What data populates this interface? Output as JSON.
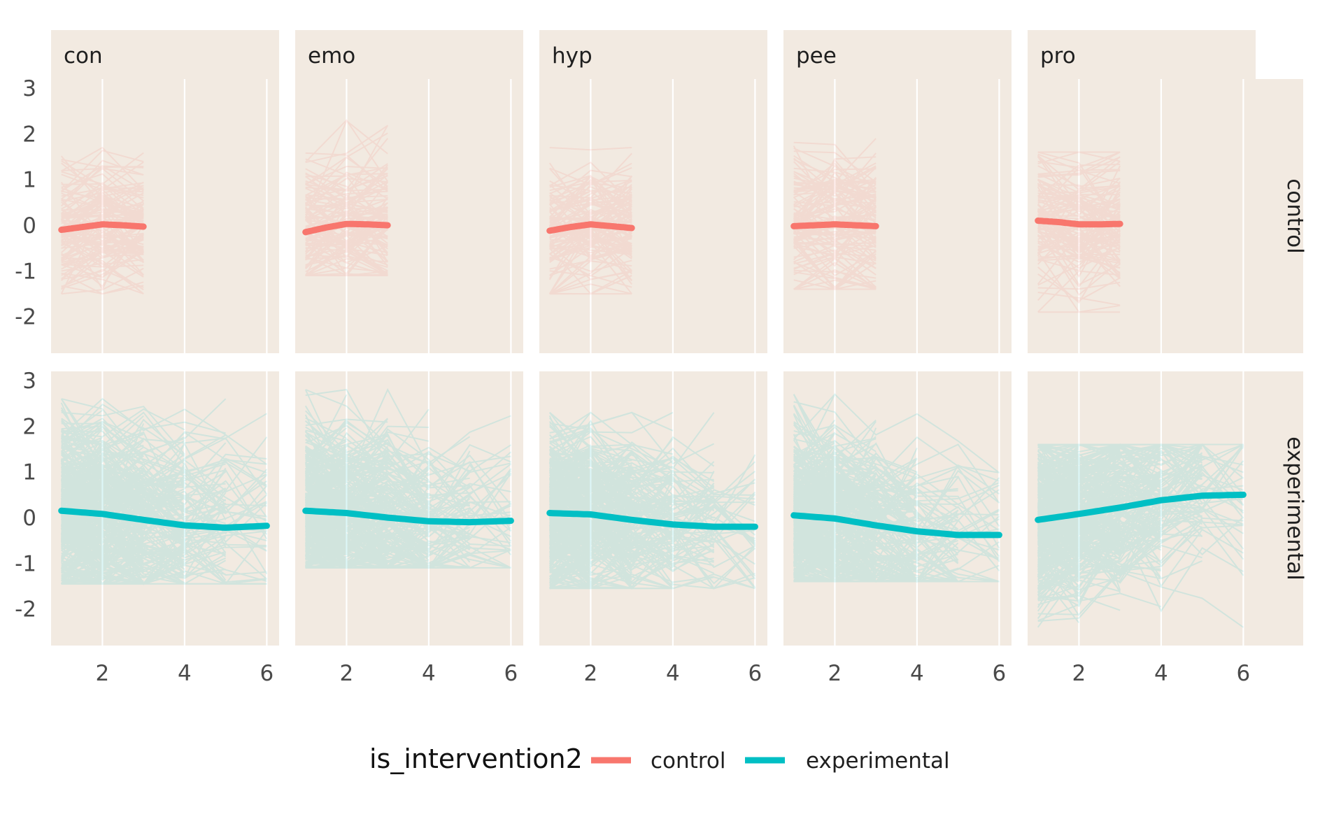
{
  "chart_data": {
    "type": "line",
    "facet_columns": [
      "con",
      "emo",
      "hyp",
      "pee",
      "pro"
    ],
    "facet_rows": [
      "control",
      "experimental"
    ],
    "x_ticks": [
      "2",
      "4",
      "6"
    ],
    "y_ticks": [
      "3",
      "2",
      "1",
      "0",
      "-1",
      "-2"
    ],
    "xlim": [
      0.75,
      6.3
    ],
    "ylim": [
      -2.8,
      3.2
    ],
    "xlabel": "",
    "ylabel": "",
    "legend": {
      "title": "is_intervention2",
      "position": "bottom",
      "entries": [
        {
          "label": "control",
          "color": "#F8766D"
        },
        {
          "label": "experimental",
          "color": "#00BFC4"
        }
      ]
    },
    "colors": {
      "control": "#F8766D",
      "experimental": "#00BFC4",
      "panel_background": "#F2EAE1",
      "grid": "#FFFFFF"
    },
    "panels": [
      {
        "col": "con",
        "row": "control",
        "trend_x": [
          1,
          1.5,
          2,
          2.5,
          3
        ],
        "trend_y": [
          -0.1,
          -0.04,
          0.02,
          0.0,
          -0.03
        ],
        "spaghetti": {
          "x_range": [
            1,
            3
          ],
          "y_range": [
            -1.5,
            1.7
          ],
          "individuals": 110
        }
      },
      {
        "col": "emo",
        "row": "control",
        "trend_x": [
          1,
          1.5,
          2,
          2.5,
          3
        ],
        "trend_y": [
          -0.15,
          -0.05,
          0.03,
          0.02,
          0.0
        ],
        "spaghetti": {
          "x_range": [
            1,
            3
          ],
          "y_range": [
            -1.1,
            2.3
          ],
          "individuals": 110
        }
      },
      {
        "col": "hyp",
        "row": "control",
        "trend_x": [
          1,
          1.5,
          2,
          2.5,
          3
        ],
        "trend_y": [
          -0.12,
          -0.04,
          0.02,
          -0.02,
          -0.06
        ],
        "spaghetti": {
          "x_range": [
            1,
            3
          ],
          "y_range": [
            -1.5,
            1.7
          ],
          "individuals": 110
        }
      },
      {
        "col": "pee",
        "row": "control",
        "trend_x": [
          1,
          1.5,
          2,
          2.5,
          3
        ],
        "trend_y": [
          -0.02,
          0.0,
          0.02,
          0.0,
          -0.02
        ],
        "spaghetti": {
          "x_range": [
            1,
            3
          ],
          "y_range": [
            -1.4,
            1.9
          ],
          "individuals": 110
        }
      },
      {
        "col": "pro",
        "row": "control",
        "trend_x": [
          1,
          1.5,
          2,
          2.5,
          3
        ],
        "trend_y": [
          0.1,
          0.07,
          0.02,
          0.02,
          0.03
        ],
        "spaghetti": {
          "x_range": [
            1,
            3
          ],
          "y_range": [
            -1.9,
            1.6
          ],
          "individuals": 110
        }
      },
      {
        "col": "con",
        "row": "experimental",
        "trend_x": [
          1,
          2,
          3,
          4,
          5,
          6
        ],
        "trend_y": [
          0.15,
          0.08,
          -0.05,
          -0.17,
          -0.22,
          -0.18
        ],
        "spaghetti": {
          "x_range": [
            1,
            6
          ],
          "y_range": [
            -1.45,
            2.6
          ],
          "individuals": 420
        }
      },
      {
        "col": "emo",
        "row": "experimental",
        "trend_x": [
          1,
          2,
          3,
          4,
          5,
          6
        ],
        "trend_y": [
          0.15,
          0.1,
          0.0,
          -0.08,
          -0.1,
          -0.07
        ],
        "spaghetti": {
          "x_range": [
            1,
            6
          ],
          "y_range": [
            -1.1,
            2.8
          ],
          "individuals": 420
        }
      },
      {
        "col": "hyp",
        "row": "experimental",
        "trend_x": [
          1,
          2,
          3,
          4,
          5,
          6
        ],
        "trend_y": [
          0.1,
          0.07,
          -0.05,
          -0.15,
          -0.2,
          -0.2
        ],
        "spaghetti": {
          "x_range": [
            1,
            6
          ],
          "y_range": [
            -1.55,
            2.3
          ],
          "individuals": 420
        }
      },
      {
        "col": "pee",
        "row": "experimental",
        "trend_x": [
          1,
          2,
          3,
          4,
          5,
          6
        ],
        "trend_y": [
          0.05,
          -0.02,
          -0.17,
          -0.3,
          -0.38,
          -0.38
        ],
        "spaghetti": {
          "x_range": [
            1,
            6
          ],
          "y_range": [
            -1.4,
            2.7
          ],
          "individuals": 420
        }
      },
      {
        "col": "pro",
        "row": "experimental",
        "trend_x": [
          1,
          2,
          3,
          4,
          5,
          6
        ],
        "trend_y": [
          -0.05,
          0.08,
          0.22,
          0.38,
          0.48,
          0.5
        ],
        "spaghetti": {
          "x_range": [
            1,
            6
          ],
          "y_range": [
            -2.4,
            1.6
          ],
          "individuals": 420
        }
      }
    ]
  }
}
